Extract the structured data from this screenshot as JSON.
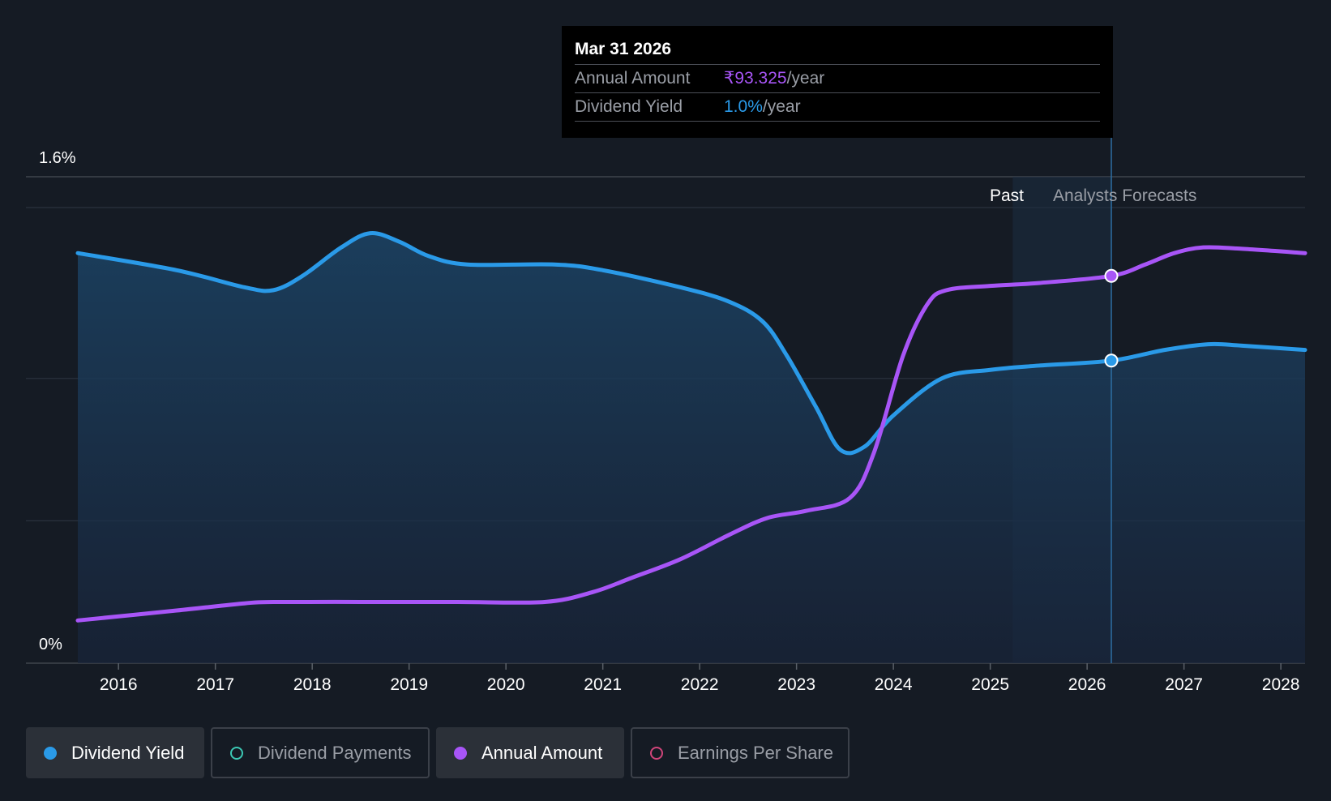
{
  "tooltip": {
    "date": "Mar 31 2026",
    "rows": [
      {
        "label": "Annual Amount",
        "value": "₹93.325",
        "unit": "/year",
        "color": "#a855f7"
      },
      {
        "label": "Dividend Yield",
        "value": "1.0%",
        "unit": "/year",
        "color": "#2a9ae8"
      }
    ]
  },
  "regions": {
    "past": "Past",
    "forecast": "Analysts Forecasts"
  },
  "legend": [
    {
      "label": "Dividend Yield",
      "color": "#2a9ae8",
      "active": true
    },
    {
      "label": "Dividend Payments",
      "color": "#3cc8b4",
      "active": false
    },
    {
      "label": "Annual Amount",
      "color": "#a855f7",
      "active": true
    },
    {
      "label": "Earnings Per Share",
      "color": "#d0457a",
      "active": false
    }
  ],
  "chart_data": {
    "type": "line",
    "y_tick_labels": [
      "1.6%",
      "0%"
    ],
    "ylim": [
      0,
      1.6
    ],
    "xlim": [
      2015.58,
      2028.25
    ],
    "x_tick_labels": [
      "2016",
      "2017",
      "2018",
      "2019",
      "2020",
      "2021",
      "2022",
      "2023",
      "2024",
      "2025",
      "2026",
      "2027",
      "2028"
    ],
    "forecast_start": 2025.5,
    "selected_x": 2026.25,
    "series": [
      {
        "name": "Dividend Yield",
        "color": "#2a9ae8",
        "filled": true,
        "points": [
          [
            2015.58,
            1.44
          ],
          [
            2016.6,
            1.38
          ],
          [
            2017.3,
            1.32
          ],
          [
            2017.6,
            1.31
          ],
          [
            2017.9,
            1.36
          ],
          [
            2018.3,
            1.46
          ],
          [
            2018.6,
            1.51
          ],
          [
            2018.9,
            1.48
          ],
          [
            2019.2,
            1.43
          ],
          [
            2019.6,
            1.4
          ],
          [
            2020.5,
            1.4
          ],
          [
            2021.0,
            1.38
          ],
          [
            2021.8,
            1.32
          ],
          [
            2022.3,
            1.27
          ],
          [
            2022.65,
            1.2
          ],
          [
            2022.9,
            1.08
          ],
          [
            2023.2,
            0.9
          ],
          [
            2023.45,
            0.75
          ],
          [
            2023.7,
            0.76
          ],
          [
            2024.0,
            0.87
          ],
          [
            2024.5,
            1.0
          ],
          [
            2025.0,
            1.03
          ],
          [
            2025.5,
            1.045
          ],
          [
            2026.25,
            1.0625
          ],
          [
            2026.8,
            1.1
          ],
          [
            2027.25,
            1.12
          ],
          [
            2027.6,
            1.115
          ],
          [
            2028.25,
            1.1
          ]
        ]
      },
      {
        "name": "Annual Amount",
        "color": "#a855f7",
        "filled": false,
        "points": [
          [
            2015.58,
            0.15
          ],
          [
            2016.6,
            0.185
          ],
          [
            2017.3,
            0.21
          ],
          [
            2017.6,
            0.215
          ],
          [
            2018.5,
            0.215
          ],
          [
            2019.5,
            0.215
          ],
          [
            2020.4,
            0.215
          ],
          [
            2020.9,
            0.25
          ],
          [
            2021.3,
            0.3
          ],
          [
            2021.8,
            0.365
          ],
          [
            2022.3,
            0.45
          ],
          [
            2022.7,
            0.51
          ],
          [
            2023.1,
            0.535
          ],
          [
            2023.55,
            0.58
          ],
          [
            2023.8,
            0.74
          ],
          [
            2024.1,
            1.08
          ],
          [
            2024.35,
            1.26
          ],
          [
            2024.55,
            1.31
          ],
          [
            2025.0,
            1.325
          ],
          [
            2025.5,
            1.335
          ],
          [
            2026.25,
            1.36
          ],
          [
            2026.6,
            1.4
          ],
          [
            2026.9,
            1.44
          ],
          [
            2027.2,
            1.46
          ],
          [
            2027.6,
            1.455
          ],
          [
            2028.25,
            1.44
          ]
        ]
      }
    ]
  }
}
